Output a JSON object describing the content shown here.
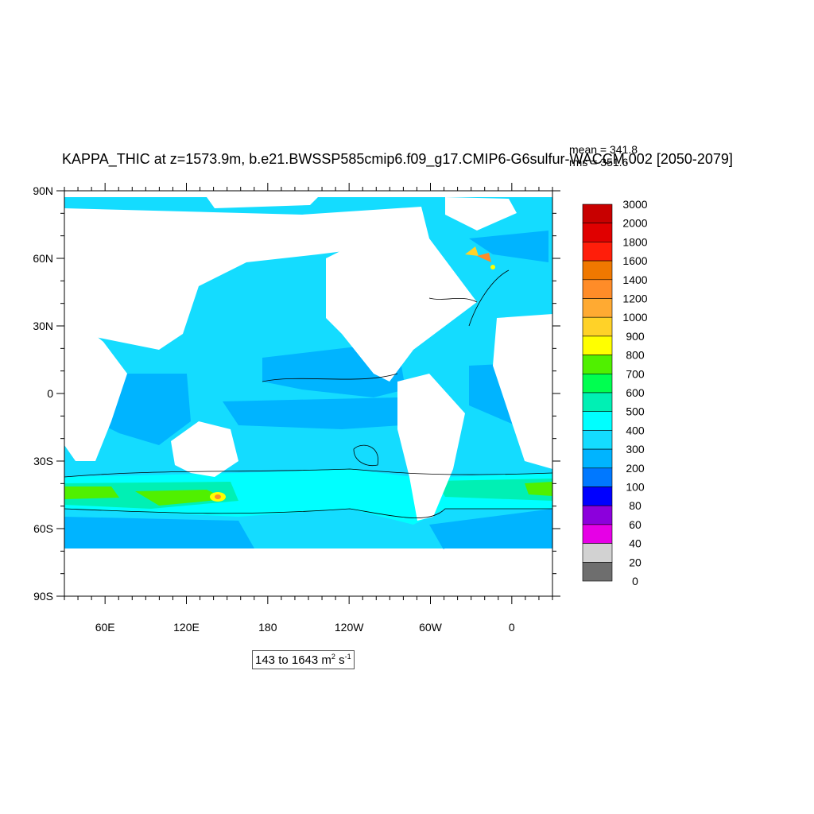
{
  "title": "KAPPA_THIC at z=1573.9m, b.e21.BWSSP585cmip6.f09_g17.CMIP6-G6sulfur-WACCM.002 [2050-2079]",
  "stats": {
    "mean": "mean = 341.8",
    "rms": "rms = 351.6"
  },
  "range": {
    "prefix": "143 to 1643 m",
    "exp1": "2",
    "mid": " s",
    "exp2": "-1"
  },
  "axes": {
    "lat_ticks": [
      "90N",
      "60N",
      "30N",
      "0",
      "30S",
      "60S",
      "90S"
    ],
    "lon_ticks": [
      "60E",
      "120E",
      "180",
      "120W",
      "60W",
      "0"
    ]
  },
  "colorbar": {
    "levels": [
      "3000",
      "2000",
      "1800",
      "1600",
      "1400",
      "1200",
      "1000",
      "900",
      "800",
      "700",
      "600",
      "500",
      "400",
      "300",
      "200",
      "100",
      "80",
      "60",
      "40",
      "20",
      "0"
    ],
    "colors": [
      "#c80000",
      "#e00000",
      "#ff1e0a",
      "#f07800",
      "#ff8c28",
      "#ffaa32",
      "#ffd228",
      "#ffff00",
      "#50f000",
      "#00ff50",
      "#00f0b4",
      "#00ffff",
      "#14dcff",
      "#00b4ff",
      "#0078ff",
      "#0000ff",
      "#8c00dc",
      "#e600e6",
      "#d2d2d2",
      "#6e6e6e"
    ]
  }
}
